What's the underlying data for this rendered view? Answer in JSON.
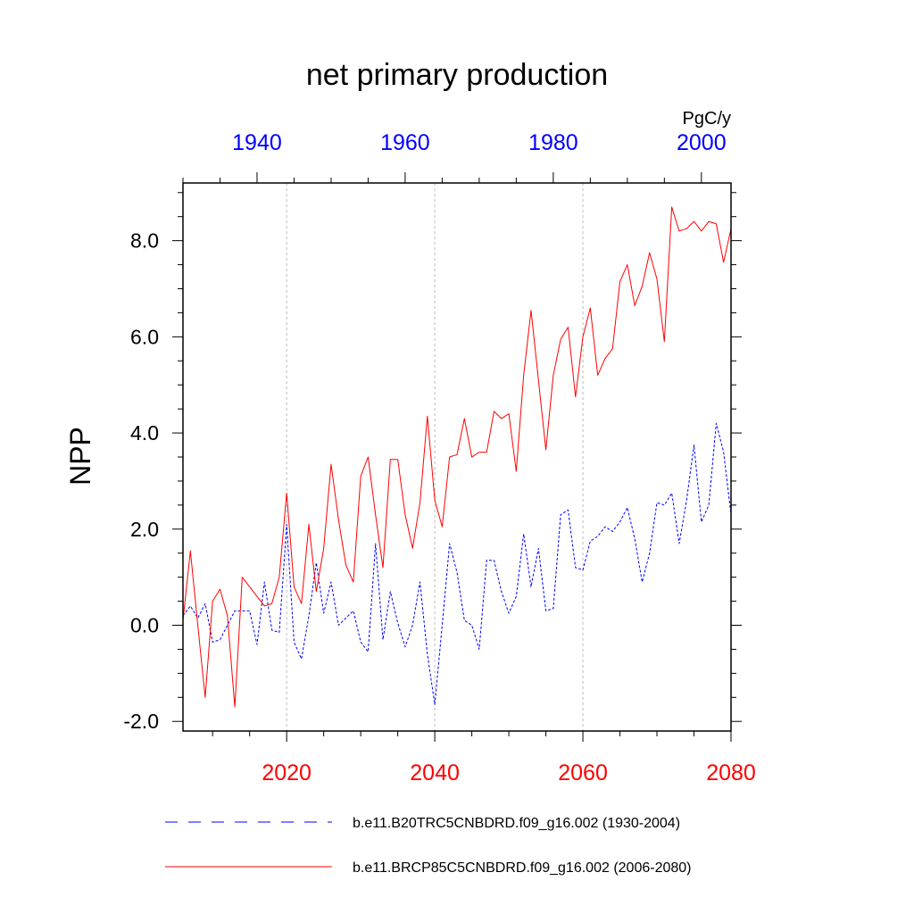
{
  "chart_data": {
    "type": "line",
    "title": "net primary production",
    "units": "PgC/y",
    "ylabel": "NPP",
    "ylim": [
      -2.2,
      9.2
    ],
    "yticks": [
      -2.0,
      0.0,
      2.0,
      4.0,
      6.0,
      8.0
    ],
    "ytick_labels": [
      "-2.0",
      "0.0",
      "2.0",
      "4.0",
      "6.0",
      "8.0"
    ],
    "x_bottom": {
      "range": [
        2006,
        2080
      ],
      "ticks": [
        2020,
        2040,
        2060,
        2080
      ],
      "tick_labels": [
        "2020",
        "2040",
        "2060",
        "2080"
      ],
      "color": "#ff0000"
    },
    "x_top": {
      "range": [
        1930,
        2004
      ],
      "ticks": [
        1940,
        1960,
        1980,
        2000
      ],
      "tick_labels": [
        "1940",
        "1960",
        "1980",
        "2000"
      ],
      "color": "#0000ff"
    },
    "gridlines_x": [
      2020,
      2040,
      2060
    ],
    "series": [
      {
        "name": "b.e11.B20TRC5CNBDRD.f09_g16.002 (1930-2004)",
        "axis": "top",
        "color": "#0000ff",
        "style": "dashed",
        "x_start": 1930,
        "values": [
          0.2,
          0.4,
          0.15,
          0.45,
          -0.35,
          -0.3,
          0.0,
          0.3,
          0.3,
          0.3,
          -0.4,
          0.9,
          -0.1,
          -0.15,
          2.1,
          -0.35,
          -0.7,
          0.2,
          1.3,
          0.25,
          0.9,
          0.0,
          0.15,
          0.3,
          -0.35,
          -0.55,
          1.7,
          -0.3,
          0.7,
          0.05,
          -0.45,
          0.0,
          0.9,
          -0.6,
          -1.65,
          0.0,
          1.7,
          1.1,
          0.1,
          0.0,
          -0.5,
          1.35,
          1.35,
          0.7,
          0.25,
          0.6,
          1.9,
          0.8,
          1.6,
          0.3,
          0.35,
          2.3,
          2.4,
          1.2,
          1.15,
          1.75,
          1.85,
          2.05,
          1.95,
          2.15,
          2.45,
          1.8,
          0.9,
          1.5,
          2.55,
          2.5,
          2.75,
          1.7,
          2.6,
          3.75,
          2.15,
          2.5,
          4.2,
          3.6,
          2.3
        ]
      },
      {
        "name": "b.e11.BRCP85C5CNBDRD.f09_g16.002 (2006-2080)",
        "axis": "bottom",
        "color": "#ff0000",
        "style": "solid",
        "x_start": 2006,
        "values": [
          0.1,
          1.55,
          0.0,
          -1.5,
          0.5,
          0.75,
          0.2,
          -1.7,
          1.0,
          0.8,
          0.6,
          0.4,
          0.45,
          1.0,
          2.75,
          0.8,
          0.45,
          2.1,
          0.7,
          1.6,
          3.35,
          2.2,
          1.25,
          0.9,
          3.1,
          3.5,
          2.3,
          1.2,
          3.45,
          3.45,
          2.3,
          1.6,
          2.55,
          4.35,
          2.6,
          2.05,
          3.5,
          3.55,
          4.3,
          3.5,
          3.6,
          3.6,
          4.45,
          4.3,
          4.4,
          3.2,
          5.2,
          6.55,
          5.1,
          3.65,
          5.2,
          5.95,
          6.2,
          4.75,
          6.0,
          6.6,
          5.2,
          5.55,
          5.75,
          7.15,
          7.5,
          6.65,
          7.05,
          7.75,
          7.2,
          5.9,
          8.7,
          8.2,
          8.25,
          8.4,
          8.2,
          8.4,
          8.35,
          7.55,
          8.25
        ]
      }
    ]
  }
}
